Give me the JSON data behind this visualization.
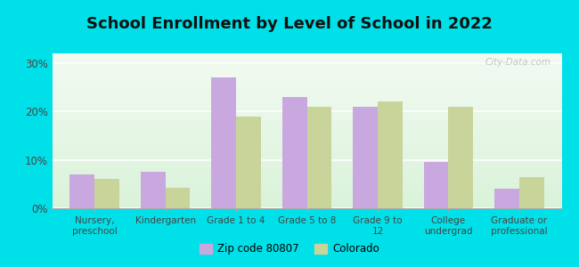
{
  "title": "School Enrollment by Level of School in 2022",
  "categories": [
    "Nursery,\npreschool",
    "Kindergarten",
    "Grade 1 to 4",
    "Grade 5 to 8",
    "Grade 9 to\n12",
    "College\nundergrad",
    "Graduate or\nprofessional"
  ],
  "zip_values": [
    7.0,
    7.5,
    27.0,
    23.0,
    21.0,
    9.5,
    4.0
  ],
  "co_values": [
    6.0,
    4.2,
    19.0,
    21.0,
    22.0,
    21.0,
    6.5
  ],
  "zip_color": "#c9a8e0",
  "co_color": "#c8d49a",
  "background_outer": "#00e0e8",
  "ylim": [
    0,
    32
  ],
  "yticks": [
    0,
    10,
    20,
    30
  ],
  "ytick_labels": [
    "0%",
    "10%",
    "20%",
    "30%"
  ],
  "title_fontsize": 13,
  "legend_label_zip": "Zip code 80807",
  "legend_label_co": "Colorado",
  "watermark": "City-Data.com"
}
